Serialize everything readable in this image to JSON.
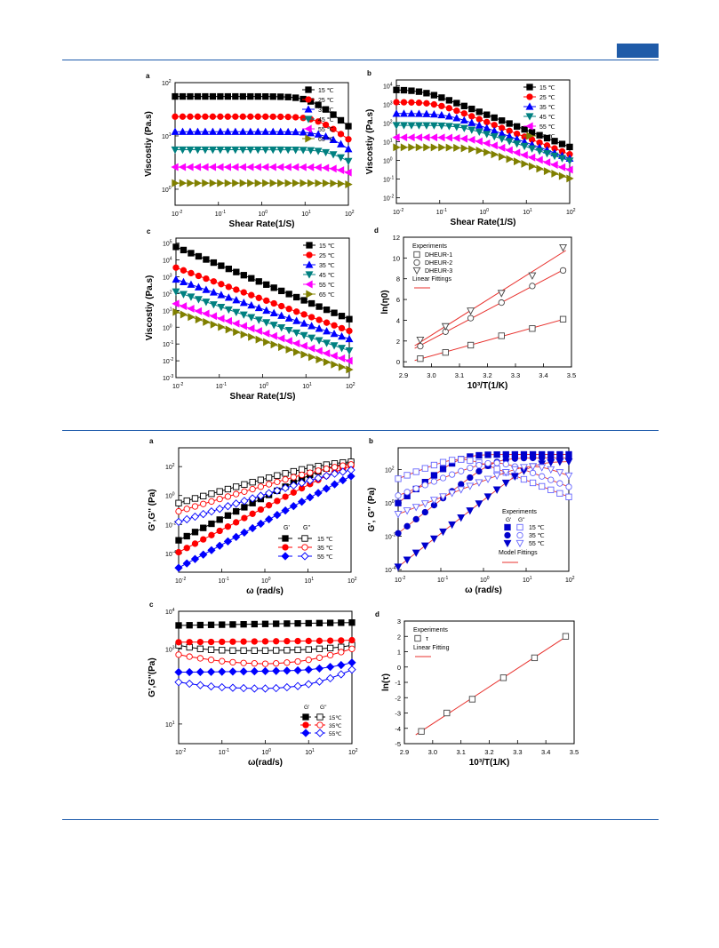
{
  "page": {
    "accent": "#1f5ba8"
  },
  "figure1": {
    "panels": {
      "a": {
        "label": "a",
        "ylabel": "Viscostiy (Pa.s)",
        "xlabel": "Shear Rate(1/S)"
      },
      "b": {
        "label": "b",
        "ylabel": "Viscostiy (Pa.s)",
        "xlabel": "Shear Rate(1/S)"
      },
      "c": {
        "label": "c",
        "ylabel": "Viscostiy (Pa.s)",
        "xlabel": "Shear Rate(1/S)"
      },
      "d": {
        "label": "d",
        "ylabel": "ln(η0)",
        "xlabel": "10³/T(1/K)",
        "legend_title": "Experiments",
        "legend_items": [
          "DHEUR-1",
          "DHEUR-2",
          "DHEUR-3"
        ],
        "fit_label": "Linear Fittings"
      }
    },
    "legend_temps": [
      "15 ℃",
      "25 ℃",
      "35 ℃",
      "45 ℃",
      "55 ℃",
      "65 ℃"
    ]
  },
  "figure2": {
    "panels": {
      "a": {
        "label": "a",
        "ylabel": "G',G'' (Pa)",
        "xlabel": "ω (rad/s)",
        "legend_head": [
          "G'",
          "G''"
        ],
        "legend_temps": [
          "15 ℃",
          "35 ℃",
          "55 ℃"
        ]
      },
      "b": {
        "label": "b",
        "ylabel": "G', G'' (Pa)",
        "xlabel": "ω (rad/s)",
        "legend_title": "Experiments",
        "legend_head": [
          "G'",
          "G''"
        ],
        "legend_temps": [
          "15 ℃",
          "35 ℃",
          "55 ℃"
        ],
        "fit_label": "Model Fittings"
      },
      "c": {
        "label": "c",
        "ylabel": "G',G''(Pa)",
        "xlabel": "ω(rad/s)",
        "legend_head": [
          "G'",
          "G''"
        ],
        "legend_temps": [
          "15℃",
          "35℃",
          "55℃"
        ]
      },
      "d": {
        "label": "d",
        "ylabel": "ln(τ)",
        "xlabel": "10³/T(1/K)",
        "legend_title": "Experiments",
        "legend_item": "τ",
        "fit_label": "Linear Fitting"
      }
    }
  },
  "chart_data": [
    {
      "id": "fig1a",
      "type": "line",
      "xscale": "log",
      "yscale": "log",
      "xlim": [
        0.01,
        100
      ],
      "ylim": [
        0.5,
        100
      ],
      "xlabel": "Shear Rate(1/S)",
      "ylabel": "Viscostiy (Pa.s)",
      "series": [
        {
          "name": "15 ℃",
          "color": "#000000",
          "marker": "square",
          "plateau": 55,
          "slope": -0.65,
          "xc": 14
        },
        {
          "name": "25 ℃",
          "color": "#ff0000",
          "marker": "circle",
          "plateau": 23,
          "slope": -0.6,
          "xc": 20
        },
        {
          "name": "35 ℃",
          "color": "#0000ff",
          "marker": "triangle-up",
          "plateau": 12,
          "slope": -0.6,
          "xc": 30
        },
        {
          "name": "45 ℃",
          "color": "#008080",
          "marker": "triangle-down",
          "plateau": 5.5,
          "slope": -0.5,
          "xc": 40
        },
        {
          "name": "55 ℃",
          "color": "#ff00ff",
          "marker": "triangle-left",
          "plateau": 2.6,
          "slope": -0.5,
          "xc": 80
        },
        {
          "name": "65 ℃",
          "color": "#808000",
          "marker": "triangle-right",
          "plateau": 1.3,
          "slope": -0.5,
          "xc": 200
        }
      ]
    },
    {
      "id": "fig1b",
      "type": "line",
      "xscale": "log",
      "yscale": "log",
      "xlim": [
        0.01,
        100
      ],
      "ylim": [
        0.005,
        20000
      ],
      "xlabel": "Shear Rate(1/S)",
      "ylabel": "Viscostiy (Pa.s)",
      "series": [
        {
          "name": "15 ℃",
          "color": "#000000",
          "marker": "square",
          "plateau": 6000,
          "slope": -0.9,
          "xc": 0.04,
          "tail": 0.25
        },
        {
          "name": "25 ℃",
          "color": "#ff0000",
          "marker": "circle",
          "plateau": 1300,
          "slope": -0.9,
          "xc": 0.08,
          "tail": 0.2
        },
        {
          "name": "35 ℃",
          "color": "#0000ff",
          "marker": "triangle-up",
          "plateau": 320,
          "slope": -0.85,
          "xc": 0.15,
          "tail": 0.15
        },
        {
          "name": "45 ℃",
          "color": "#008080",
          "marker": "triangle-down",
          "plateau": 75,
          "slope": -0.75,
          "xc": 0.3,
          "tail": 0.12
        },
        {
          "name": "55 ℃",
          "color": "#ff00ff",
          "marker": "triangle-left",
          "plateau": 17,
          "slope": -0.75,
          "xc": 0.5,
          "tail": 0.035
        },
        {
          "name": "65 ℃",
          "color": "#808000",
          "marker": "triangle-right",
          "plateau": 5,
          "slope": -0.75,
          "xc": 0.6,
          "tail": 0.01
        }
      ]
    },
    {
      "id": "fig1c",
      "type": "line",
      "xscale": "log",
      "yscale": "log",
      "xlim": [
        0.01,
        100
      ],
      "ylim": [
        0.001,
        200000
      ],
      "xlabel": "Shear Rate(1/S)",
      "ylabel": "Viscostiy (Pa.s)",
      "series": [
        {
          "name": "15 ℃",
          "color": "#000000",
          "marker": "square",
          "start": 60000,
          "end": 3
        },
        {
          "name": "25 ℃",
          "color": "#ff0000",
          "marker": "circle",
          "start": 3500,
          "end": 0.6
        },
        {
          "name": "35 ℃",
          "color": "#0000ff",
          "marker": "triangle-up",
          "start": 700,
          "end": 0.2
        },
        {
          "name": "45 ℃",
          "color": "#008080",
          "marker": "triangle-down",
          "start": 130,
          "end": 0.04
        },
        {
          "name": "55 ℃",
          "color": "#ff00ff",
          "marker": "triangle-left",
          "start": 25,
          "end": 0.01
        },
        {
          "name": "65 ℃",
          "color": "#808000",
          "marker": "triangle-right",
          "start": 8,
          "end": 0.003
        }
      ]
    },
    {
      "id": "fig1d",
      "type": "scatter",
      "xlim": [
        2.9,
        3.5
      ],
      "ylim": [
        -0.5,
        12
      ],
      "xlabel": "10³/T(1/K)",
      "ylabel": "ln(η0)",
      "x": [
        2.96,
        3.05,
        3.14,
        3.25,
        3.36,
        3.47
      ],
      "series": [
        {
          "name": "DHEUR-1",
          "marker": "open-square",
          "values": [
            0.3,
            0.9,
            1.6,
            2.5,
            3.2,
            4.1
          ]
        },
        {
          "name": "DHEUR-2",
          "marker": "open-circle",
          "values": [
            1.5,
            2.9,
            4.2,
            5.7,
            7.3,
            8.8
          ]
        },
        {
          "name": "DHEUR-3",
          "marker": "open-triangle-down",
          "values": [
            2.1,
            3.4,
            4.9,
            6.6,
            8.3,
            11.0
          ]
        }
      ]
    },
    {
      "id": "fig2a",
      "type": "line",
      "xscale": "log",
      "yscale": "log",
      "xlim": [
        0.01,
        100
      ],
      "ylim": [
        5e-06,
        2000
      ],
      "xlabel": "ω (rad/s)",
      "ylabel": "G',G'' (Pa)",
      "series": [
        {
          "name": "G' 15 ℃",
          "color": "#000000",
          "marker": "square",
          "filled": true,
          "start": 0.0008,
          "slope": 1.5,
          "cap": 220
        },
        {
          "name": "G'' 15 ℃",
          "color": "#000000",
          "marker": "square",
          "filled": false,
          "start": 0.3,
          "slope": 0.85,
          "cap": 300
        },
        {
          "name": "G' 35 ℃",
          "color": "#ff0000",
          "marker": "circle",
          "filled": true,
          "start": 0.00012,
          "slope": 1.55,
          "cap": 250
        },
        {
          "name": "G'' 35 ℃",
          "color": "#ff0000",
          "marker": "circle",
          "filled": false,
          "start": 0.08,
          "slope": 0.9,
          "cap": 250
        },
        {
          "name": "G' 55 ℃",
          "color": "#0000ff",
          "marker": "diamond",
          "filled": true,
          "start": 1e-05,
          "slope": 1.6,
          "cap": 150
        },
        {
          "name": "G'' 55 ℃",
          "color": "#0000ff",
          "marker": "diamond",
          "filled": false,
          "start": 0.015,
          "slope": 0.95,
          "cap": 150
        }
      ]
    },
    {
      "id": "fig2b",
      "type": "line",
      "xscale": "log",
      "yscale": "log",
      "xlim": [
        0.01,
        100
      ],
      "ylim": [
        8e-05,
        2000
      ],
      "xlabel": "ω (rad/s)",
      "ylabel": "G', G'' (Pa)",
      "series": [
        {
          "name": "G' 15 ℃",
          "color": "#0000cc",
          "marker": "square",
          "filled": true,
          "G0": 800,
          "tau": 3.5
        },
        {
          "name": "G'' 15 ℃",
          "color": "#6666ff",
          "marker": "square",
          "filled": false,
          "G0": 800,
          "tau": 3.5
        },
        {
          "name": "G' 35 ℃",
          "color": "#0000cc",
          "marker": "circle",
          "filled": true,
          "G0": 500,
          "tau": 0.55
        },
        {
          "name": "G'' 35 ℃",
          "color": "#6666ff",
          "marker": "circle",
          "filled": false,
          "G0": 500,
          "tau": 0.55
        },
        {
          "name": "G' 55 ℃",
          "color": "#0000cc",
          "marker": "triangle-down",
          "filled": true,
          "G0": 300,
          "tau": 0.07
        },
        {
          "name": "G'' 55 ℃",
          "color": "#6666ff",
          "marker": "triangle-down",
          "filled": false,
          "G0": 300,
          "tau": 0.07
        }
      ]
    },
    {
      "id": "fig2c",
      "type": "line",
      "xscale": "log",
      "yscale": "log",
      "xlim": [
        0.01,
        100
      ],
      "ylim": [
        3,
        10000
      ],
      "xlabel": "ω(rad/s)",
      "ylabel": "G',G''(Pa)",
      "series": [
        {
          "name": "G' 15℃",
          "color": "#000000",
          "marker": "square",
          "filled": true,
          "values": [
            4200,
            4250,
            4300,
            4350,
            4400,
            4450,
            4500,
            4550,
            4600,
            4650,
            4700,
            4750,
            4800,
            4850,
            4900,
            4950,
            5000
          ]
        },
        {
          "name": "G'' 15℃",
          "color": "#000000",
          "marker": "square",
          "filled": false,
          "values": [
            1250,
            1100,
            1000,
            950,
            920,
            900,
            900,
            900,
            900,
            910,
            920,
            940,
            960,
            1000,
            1050,
            1120,
            1250
          ]
        },
        {
          "name": "G' 35℃",
          "color": "#ff0000",
          "marker": "circle",
          "filled": true,
          "values": [
            1500,
            1510,
            1520,
            1530,
            1540,
            1550,
            1560,
            1570,
            1580,
            1590,
            1600,
            1610,
            1620,
            1630,
            1650,
            1670,
            1700
          ]
        },
        {
          "name": "G'' 35℃",
          "color": "#ff0000",
          "marker": "circle",
          "filled": false,
          "values": [
            700,
            620,
            560,
            510,
            470,
            440,
            420,
            410,
            400,
            410,
            430,
            460,
            510,
            580,
            680,
            820,
            1000
          ]
        },
        {
          "name": "G' 55℃",
          "color": "#0000ff",
          "marker": "diamond",
          "filled": true,
          "values": [
            240,
            240,
            242,
            244,
            246,
            248,
            250,
            252,
            255,
            258,
            262,
            268,
            280,
            300,
            330,
            370,
            430
          ]
        },
        {
          "name": "G'' 55℃",
          "color": "#0000ff",
          "marker": "diamond",
          "filled": false,
          "values": [
            130,
            118,
            108,
            100,
            95,
            92,
            90,
            88,
            88,
            90,
            95,
            102,
            115,
            135,
            165,
            210,
            280
          ]
        }
      ]
    },
    {
      "id": "fig2d",
      "type": "scatter",
      "xlim": [
        2.9,
        3.5
      ],
      "ylim": [
        -5,
        3
      ],
      "xlabel": "10³/T(1/K)",
      "ylabel": "ln(τ)",
      "x": [
        2.96,
        3.05,
        3.14,
        3.25,
        3.36,
        3.47
      ],
      "series": [
        {
          "name": "τ",
          "marker": "open-square",
          "values": [
            -4.2,
            -3.0,
            -2.1,
            -0.7,
            0.6,
            2.0
          ]
        }
      ]
    }
  ]
}
